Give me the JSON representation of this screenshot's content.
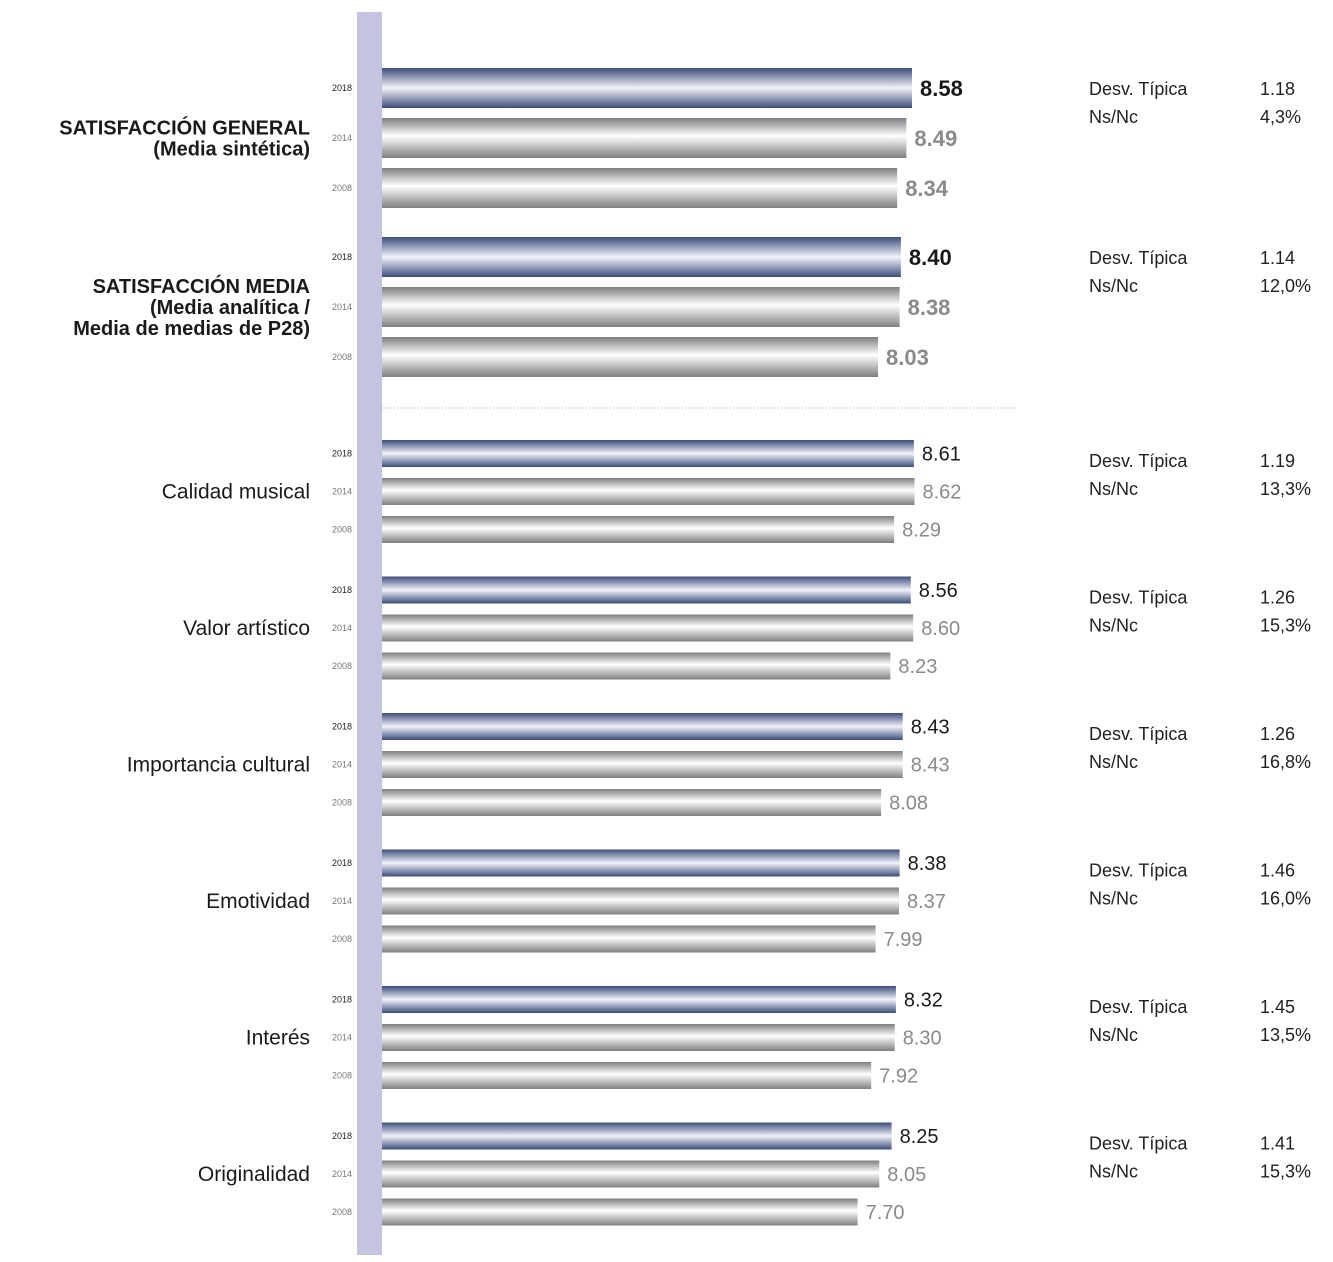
{
  "colors": {
    "axis_band": "#c5c4e0",
    "bar_2018_dark": "#3c4d7e",
    "bar_2018_light": "#f1f3f8",
    "bar_gray_dark": "#7f7f82",
    "bar_gray_light": "#ffffff",
    "value_current": "#1a1a1a",
    "value_past": "#8a8a8a",
    "divider": "#a8a8a8"
  },
  "chart_data": {
    "type": "bar",
    "orientation": "horizontal",
    "grid": false,
    "legend": "none",
    "xlim": [
      0,
      10
    ],
    "stats_labels": {
      "sd": "Desv. Típica",
      "nsnc": "Ns/Nc"
    },
    "groups": [
      {
        "label_lines": [
          "SATISFACCIÓN GENERAL",
          "(Media sintética)"
        ],
        "emphasis": true,
        "bars": [
          {
            "year": "2018",
            "value": 8.58,
            "label": "8.58"
          },
          {
            "year": "2014",
            "value": 8.49,
            "label": "8.49"
          },
          {
            "year": "2008",
            "value": 8.34,
            "label": "8.34"
          }
        ],
        "sd": "1.18",
        "nsnc": "4,3%"
      },
      {
        "label_lines": [
          "SATISFACCIÓN MEDIA",
          "(Media analítica /",
          "Media de medias de P28)"
        ],
        "emphasis": true,
        "bars": [
          {
            "year": "2018",
            "value": 8.4,
            "label": "8.40"
          },
          {
            "year": "2014",
            "value": 8.38,
            "label": "8.38"
          },
          {
            "year": "2008",
            "value": 8.03,
            "label": "8.03"
          }
        ],
        "sd": "1.14",
        "nsnc": "12,0%"
      },
      {
        "label_lines": [
          "Calidad musical"
        ],
        "emphasis": false,
        "bars": [
          {
            "year": "2018",
            "value": 8.61,
            "label": "8.61"
          },
          {
            "year": "2014",
            "value": 8.62,
            "label": "8.62"
          },
          {
            "year": "2008",
            "value": 8.29,
            "label": "8.29"
          }
        ],
        "sd": "1.19",
        "nsnc": "13,3%"
      },
      {
        "label_lines": [
          "Valor artístico"
        ],
        "emphasis": false,
        "bars": [
          {
            "year": "2018",
            "value": 8.56,
            "label": "8.56"
          },
          {
            "year": "2014",
            "value": 8.6,
            "label": "8.60"
          },
          {
            "year": "2008",
            "value": 8.23,
            "label": "8.23"
          }
        ],
        "sd": "1.26",
        "nsnc": "15,3%"
      },
      {
        "label_lines": [
          "Importancia cultural"
        ],
        "emphasis": false,
        "bars": [
          {
            "year": "2018",
            "value": 8.43,
            "label": "8.43"
          },
          {
            "year": "2014",
            "value": 8.43,
            "label": "8.43"
          },
          {
            "year": "2008",
            "value": 8.08,
            "label": "8.08"
          }
        ],
        "sd": "1.26",
        "nsnc": "16,8%"
      },
      {
        "label_lines": [
          "Emotividad"
        ],
        "emphasis": false,
        "bars": [
          {
            "year": "2018",
            "value": 8.38,
            "label": "8.38"
          },
          {
            "year": "2014",
            "value": 8.37,
            "label": "8.37"
          },
          {
            "year": "2008",
            "value": 7.99,
            "label": "7.99"
          }
        ],
        "sd": "1.46",
        "nsnc": "16,0%"
      },
      {
        "label_lines": [
          "Interés"
        ],
        "emphasis": false,
        "bars": [
          {
            "year": "2018",
            "value": 8.32,
            "label": "8.32"
          },
          {
            "year": "2014",
            "value": 8.3,
            "label": "8.30"
          },
          {
            "year": "2008",
            "value": 7.92,
            "label": "7.92"
          }
        ],
        "sd": "1.45",
        "nsnc": "13,5%"
      },
      {
        "label_lines": [
          "Originalidad"
        ],
        "emphasis": false,
        "bars": [
          {
            "year": "2018",
            "value": 8.25,
            "label": "8.25"
          },
          {
            "year": "2014",
            "value": 8.05,
            "label": "8.05"
          },
          {
            "year": "2008",
            "value": 7.7,
            "label": "7.70"
          }
        ],
        "sd": "1.41",
        "nsnc": "15,3%"
      }
    ]
  }
}
